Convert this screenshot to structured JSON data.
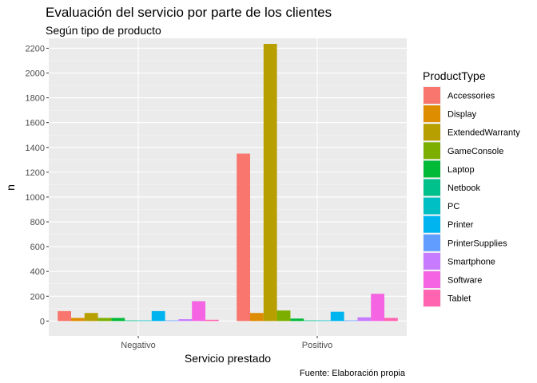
{
  "chart_data": {
    "type": "bar",
    "title": "Evaluación del servicio por parte de los clientes",
    "subtitle": "Según tipo de producto",
    "caption": "Fuente: Elaboración propia",
    "xlabel": "Servicio prestado",
    "ylabel": "n",
    "categories": [
      "Negativo",
      "Positivo"
    ],
    "ylim": [
      -120,
      2280
    ],
    "yticks": [
      0,
      200,
      400,
      600,
      800,
      1000,
      1200,
      1400,
      1600,
      1800,
      2000,
      2200
    ],
    "grid": true,
    "legend": {
      "title": "ProductType",
      "position": "right"
    },
    "series": [
      {
        "name": "Accessories",
        "color": "#F8766D",
        "values": [
          80,
          1350
        ]
      },
      {
        "name": "Display",
        "color": "#DE8C00",
        "values": [
          25,
          65
        ]
      },
      {
        "name": "ExtendedWarranty",
        "color": "#B79F00",
        "values": [
          65,
          2235
        ]
      },
      {
        "name": "GameConsole",
        "color": "#7CAE00",
        "values": [
          25,
          85
        ]
      },
      {
        "name": "Laptop",
        "color": "#00BA38",
        "values": [
          25,
          20
        ]
      },
      {
        "name": "Netbook",
        "color": "#00C08B",
        "values": [
          5,
          5
        ]
      },
      {
        "name": "PC",
        "color": "#00BFC4",
        "values": [
          5,
          5
        ]
      },
      {
        "name": "Printer",
        "color": "#00B4F0",
        "values": [
          80,
          75
        ]
      },
      {
        "name": "PrinterSupplies",
        "color": "#619CFF",
        "values": [
          5,
          5
        ]
      },
      {
        "name": "Smartphone",
        "color": "#C77CFF",
        "values": [
          15,
          30
        ]
      },
      {
        "name": "Software",
        "color": "#F564E3",
        "values": [
          160,
          220
        ]
      },
      {
        "name": "Tablet",
        "color": "#FF64B0",
        "values": [
          10,
          25
        ]
      }
    ]
  }
}
